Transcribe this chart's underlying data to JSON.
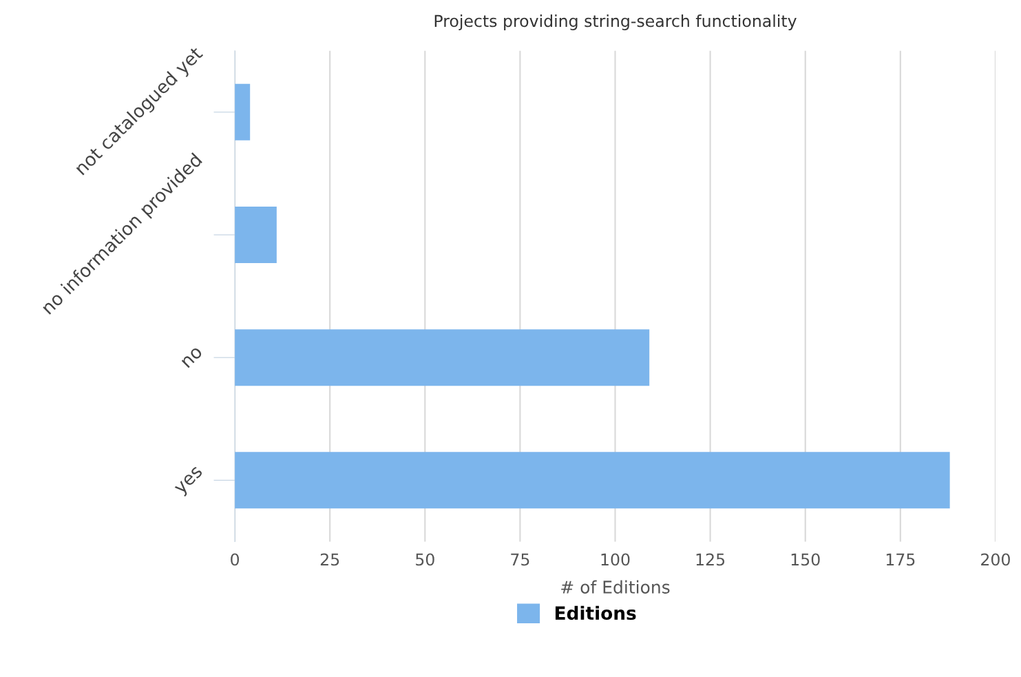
{
  "chart_data": {
    "type": "bar",
    "orientation": "horizontal",
    "title": "Projects providing string-search functionality",
    "xlabel": "# of Editions",
    "categories": [
      "not catalogued yet",
      "no information provided",
      "no",
      "yes"
    ],
    "series": [
      {
        "name": "Editions",
        "color": "#7cb5ec",
        "values": [
          4,
          11,
          109,
          188
        ]
      }
    ],
    "xlim": [
      0,
      200
    ],
    "xticks": [
      0,
      25,
      50,
      75,
      100,
      125,
      150,
      175,
      200
    ],
    "grid": "x",
    "legend": "bottom"
  }
}
